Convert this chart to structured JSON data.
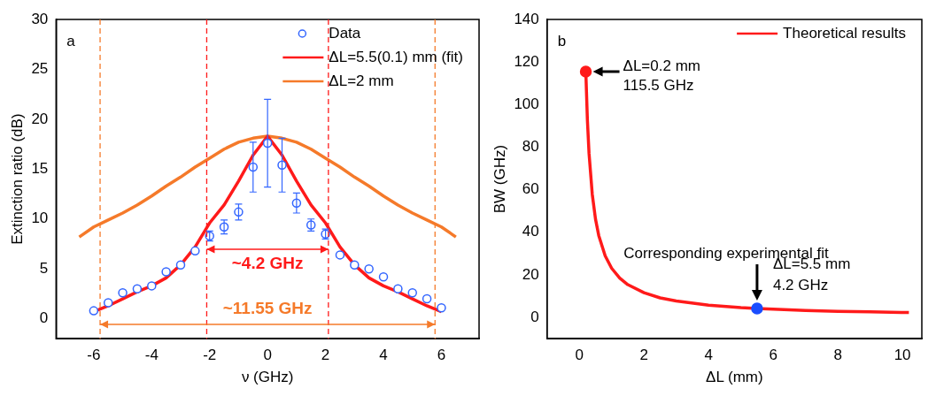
{
  "chart_data": [
    {
      "type": "scatter",
      "xlabel": "ν (GHz)",
      "ylabel": "Extinction ratio (dB)",
      "xlim": [
        -7.3,
        7.3
      ],
      "xticks": [
        -6,
        -4,
        -2,
        0,
        2,
        4,
        6
      ],
      "ylim": [
        -2,
        30
      ],
      "yticks": [
        0,
        5,
        10,
        15,
        20,
        25,
        30
      ],
      "grid": false,
      "legend": "top right",
      "series": [
        {
          "name": "Data",
          "marker": "circle",
          "color": "#3366ff",
          "x": [
            -6,
            -5.5,
            -5,
            -4.5,
            -4,
            -3.5,
            -3,
            -2.5,
            -2,
            -1.5,
            -1,
            -0.5,
            0,
            0.5,
            1,
            1.5,
            2,
            2.5,
            3,
            3.5,
            4,
            4.5,
            5,
            5.5,
            6
          ],
          "values": [
            0.8,
            1.6,
            2.6,
            3.0,
            3.3,
            4.7,
            5.4,
            6.8,
            8.3,
            9.2,
            10.7,
            15.2,
            17.6,
            15.4,
            11.6,
            9.4,
            8.5,
            6.4,
            5.4,
            5.0,
            4.2,
            3.0,
            2.6,
            2.0,
            1.1
          ],
          "errors": [
            null,
            null,
            null,
            null,
            null,
            null,
            null,
            null,
            0.5,
            0.7,
            0.8,
            2.5,
            4.4,
            2.7,
            1.0,
            0.6,
            0.5,
            null,
            null,
            null,
            null,
            null,
            null,
            null,
            null
          ]
        },
        {
          "name": "ΔL=5.5(0.1) mm (fit)",
          "type": "line",
          "marker": "none",
          "color": "#ff1a1a",
          "x": [
            -6,
            -5.5,
            -5,
            -4.5,
            -4,
            -3.5,
            -3,
            -2.5,
            -2,
            -1.5,
            -1,
            -0.5,
            0,
            0.5,
            1,
            1.5,
            2,
            2.5,
            3,
            3.5,
            4,
            4.5,
            5,
            5.5,
            6
          ],
          "values": [
            0.7,
            1.3,
            2.0,
            2.7,
            3.3,
            4.1,
            5.4,
            7.2,
            9.6,
            11.4,
            13.8,
            16.4,
            18.3,
            16.4,
            13.8,
            11.4,
            9.6,
            7.2,
            5.4,
            4.1,
            3.3,
            2.7,
            2.0,
            1.3,
            0.7
          ]
        },
        {
          "name": "ΔL=2 mm",
          "type": "line",
          "marker": "none",
          "color": "#f57a2a",
          "x": [
            -6.5,
            -6,
            -5.5,
            -5,
            -4.5,
            -4,
            -3.5,
            -3,
            -2.5,
            -2,
            -1.5,
            -1,
            -0.5,
            0,
            0.5,
            1,
            1.5,
            2,
            2.5,
            3,
            3.5,
            4,
            4.5,
            5,
            5.5,
            6,
            6.5
          ],
          "values": [
            8.2,
            9.2,
            9.9,
            10.6,
            11.4,
            12.3,
            13.3,
            14.2,
            15.2,
            16.1,
            17.0,
            17.7,
            18.1,
            18.3,
            18.1,
            17.7,
            17.0,
            16.1,
            15.2,
            14.2,
            13.3,
            12.3,
            11.4,
            10.6,
            9.9,
            9.2,
            8.2
          ]
        }
      ],
      "ref_lines": [
        {
          "axis": "x",
          "value": -2.1,
          "color": "#ff1a1a",
          "line_style": "dashed"
        },
        {
          "axis": "x",
          "value": 2.1,
          "color": "#ff1a1a",
          "line_style": "dashed"
        },
        {
          "axis": "x",
          "value": -5.78,
          "color": "#f57a2a",
          "line_style": "dashed"
        },
        {
          "axis": "x",
          "value": 5.78,
          "color": "#f57a2a",
          "line_style": "dashed"
        }
      ],
      "annotations": [
        "a",
        "~4.2 GHz",
        "~11.55 GHz"
      ]
    },
    {
      "type": "line",
      "xlabel": "ΔL (mm)",
      "ylabel": "BW (GHz)",
      "xlim": [
        -1,
        10.6
      ],
      "xticks": [
        0,
        2,
        4,
        6,
        8,
        10
      ],
      "ylim": [
        -10,
        140
      ],
      "yticks": [
        0,
        20,
        40,
        60,
        80,
        100,
        120,
        140
      ],
      "grid": false,
      "legend": "top right",
      "series": [
        {
          "name": "Theoretical results",
          "marker": "none",
          "color": "#ff1a1a",
          "x": [
            0.2,
            0.25,
            0.3,
            0.4,
            0.5,
            0.6,
            0.8,
            1,
            1.25,
            1.5,
            2,
            2.5,
            3,
            4,
            5,
            5.5,
            6,
            7,
            8,
            9,
            10.2
          ],
          "values": [
            115.5,
            92.4,
            77,
            57.8,
            46.2,
            38.5,
            28.9,
            23.1,
            18.5,
            15.4,
            11.6,
            9.2,
            7.7,
            5.8,
            4.6,
            4.2,
            3.9,
            3.3,
            2.9,
            2.6,
            2.3
          ]
        },
        {
          "type": "scatter",
          "marker": "circle",
          "color": "#ff1a1a",
          "x": [
            0.2
          ],
          "values": [
            115.5
          ]
        },
        {
          "type": "scatter",
          "marker": "circle",
          "color": "#1a4dff",
          "x": [
            5.5
          ],
          "values": [
            4.2
          ]
        }
      ],
      "annotations": [
        "b",
        {
          "text": "ΔL=0.2 mm\n115.5 GHz",
          "x": 0.2,
          "y": 115.5
        },
        {
          "text": "Corresponding experimental fit\nΔL=5.5 mm\n4.2 GHz",
          "x": 5.5,
          "y": 4.2
        }
      ]
    }
  ]
}
